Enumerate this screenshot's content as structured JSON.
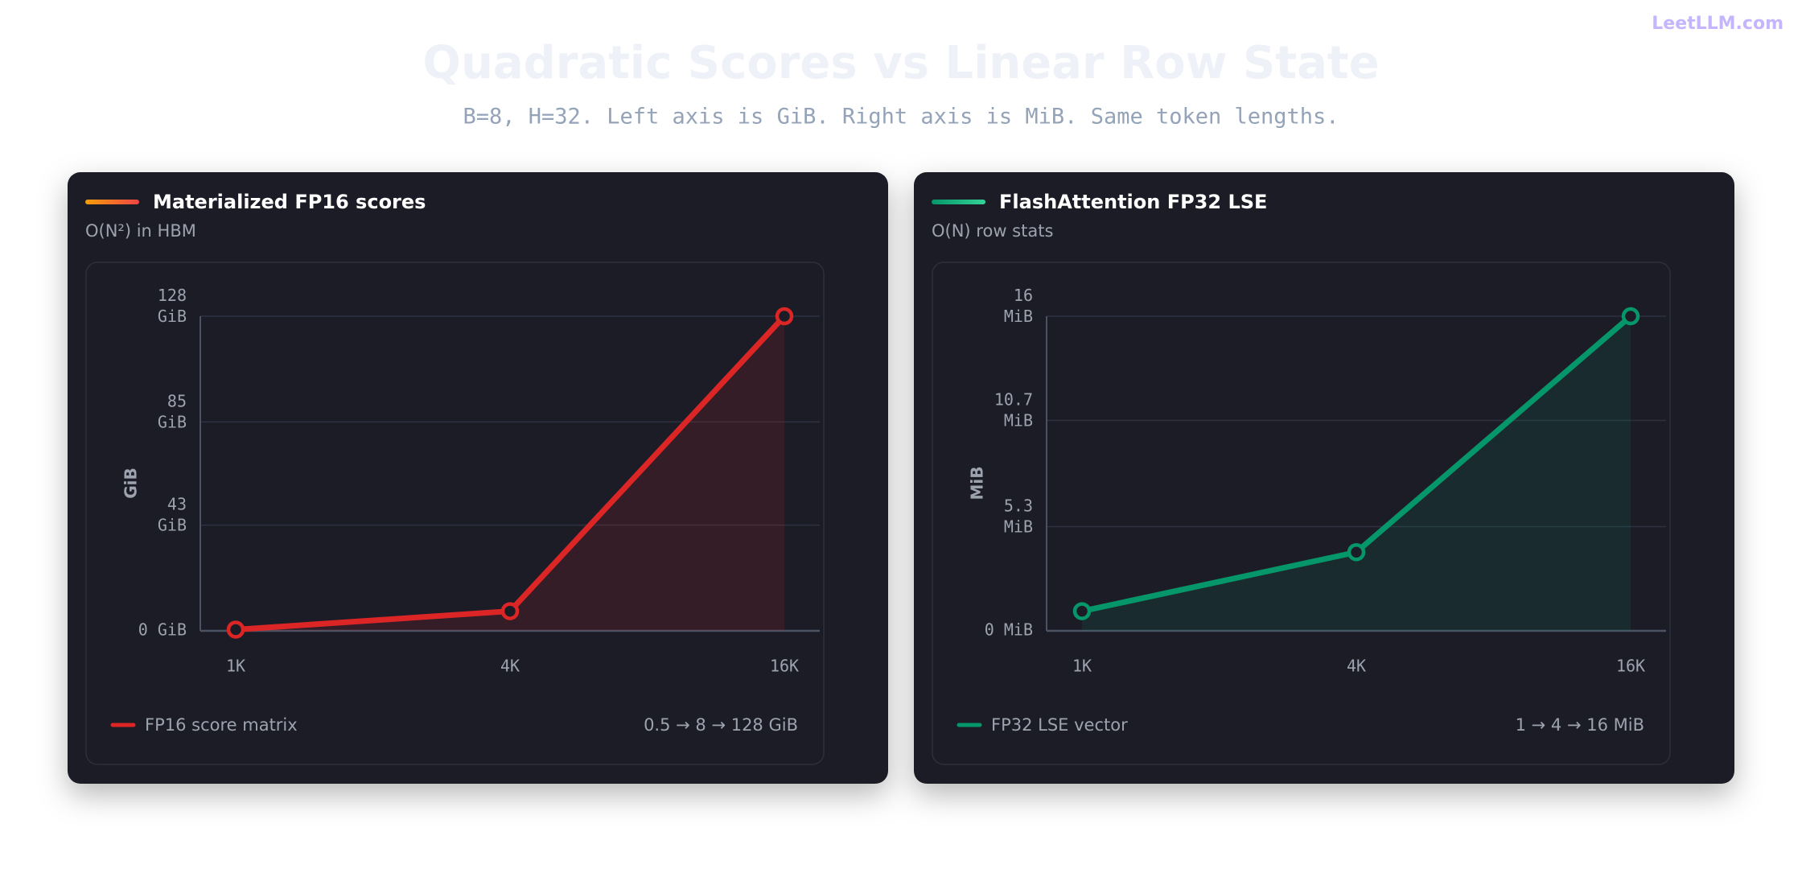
{
  "page": {
    "title": "Quadratic Scores vs Linear Row State",
    "subtitle": "B=8, H=32. Left axis is GiB. Right axis is MiB. Same token lengths.",
    "brand": "LeetLLM.com"
  },
  "chart_data": [
    {
      "type": "line",
      "title": "Materialized FP16 scores",
      "subtitle": "O(N²) in HBM",
      "y_label": "GiB",
      "categories": [
        "1K",
        "4K",
        "16K"
      ],
      "series": [
        {
          "name": "FP16 score matrix",
          "color": "#dc2626",
          "values": [
            0.5,
            8,
            128
          ]
        }
      ],
      "ylim": [
        0,
        128
      ],
      "yticks": [
        {
          "value": 0,
          "label": "0 GiB"
        },
        {
          "value": 43,
          "label": "43 GiB"
        },
        {
          "value": 85,
          "label": "85 GiB"
        },
        {
          "value": 128,
          "label": "128 GiB"
        }
      ],
      "grid": true,
      "annotation": "0.5 → 8 → 128 GiB"
    },
    {
      "type": "line",
      "title": "FlashAttention FP32 LSE",
      "subtitle": "O(N) row stats",
      "y_label": "MiB",
      "categories": [
        "1K",
        "4K",
        "16K"
      ],
      "series": [
        {
          "name": "FP32 LSE vector",
          "color": "#059669",
          "values": [
            1,
            4,
            16
          ]
        }
      ],
      "ylim": [
        0,
        16
      ],
      "yticks": [
        {
          "value": 0,
          "label": "0 MiB"
        },
        {
          "value": 5.3,
          "label": "5.3 MiB"
        },
        {
          "value": 10.7,
          "label": "10.7 MiB"
        },
        {
          "value": 16,
          "label": "16 MiB"
        }
      ],
      "grid": true,
      "annotation": "1 → 4 → 16 MiB"
    }
  ]
}
